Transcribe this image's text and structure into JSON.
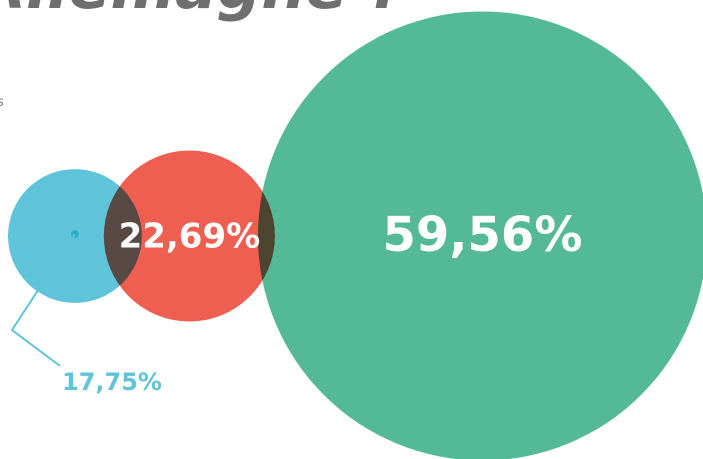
{
  "chart_data": {
    "type": "bubble",
    "title": "Allemagne ?",
    "fragment": "s",
    "categories": [
      null,
      null,
      null
    ],
    "values": [
      17.75,
      22.69,
      59.56
    ],
    "value_labels": [
      "17,75%",
      "22,69%",
      "59,56%"
    ],
    "colors": [
      "#5fc4da",
      "#ee5f51",
      "#53b996"
    ]
  }
}
